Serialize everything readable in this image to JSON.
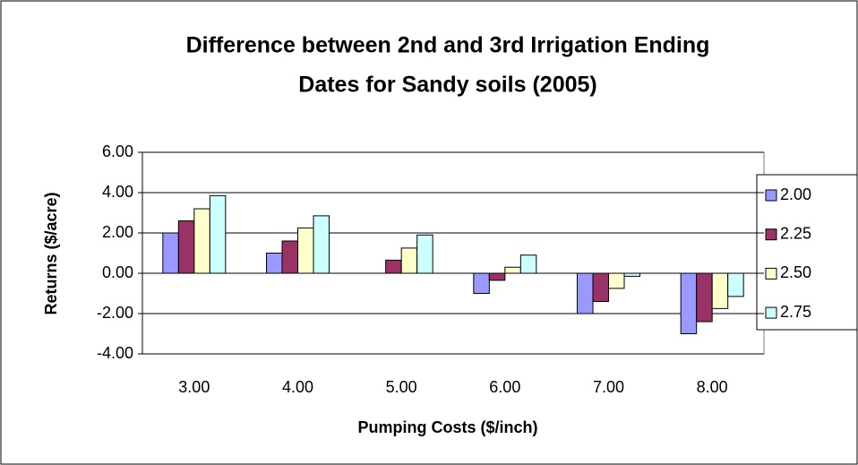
{
  "chart_data": {
    "type": "bar",
    "title": [
      "Difference between 2nd and 3rd Irrigation Ending",
      "Dates for Sandy soils (2005)"
    ],
    "x_label": "Pumping Costs ($/inch)",
    "y_label": "Returns ($/acre)",
    "categories": [
      "3.00",
      "4.00",
      "5.00",
      "6.00",
      "7.00",
      "8.00"
    ],
    "series": [
      {
        "name": "2.00",
        "color": "#9999ff",
        "values": [
          2.0,
          1.0,
          0.0,
          -1.0,
          -2.0,
          -3.0
        ]
      },
      {
        "name": "2.25",
        "color": "#993366",
        "values": [
          2.6,
          1.6,
          0.65,
          -0.35,
          -1.4,
          -2.4
        ]
      },
      {
        "name": "2.50",
        "color": "#ffffcc",
        "values": [
          3.2,
          2.25,
          1.25,
          0.3,
          -0.75,
          -1.75
        ]
      },
      {
        "name": "2.75",
        "color": "#ccffff",
        "values": [
          3.85,
          2.85,
          1.9,
          0.9,
          -0.15,
          -1.15
        ]
      }
    ],
    "ylim": [
      -4,
      6
    ],
    "yticks": [
      {
        "value": -4,
        "label": "-4.00"
      },
      {
        "value": -2,
        "label": "-2.00"
      },
      {
        "value": 0,
        "label": "0.00"
      },
      {
        "value": 2,
        "label": "2.00"
      },
      {
        "value": 4,
        "label": "4.00"
      },
      {
        "value": 6,
        "label": "6.00"
      }
    ],
    "grid": true,
    "legend": "right"
  }
}
